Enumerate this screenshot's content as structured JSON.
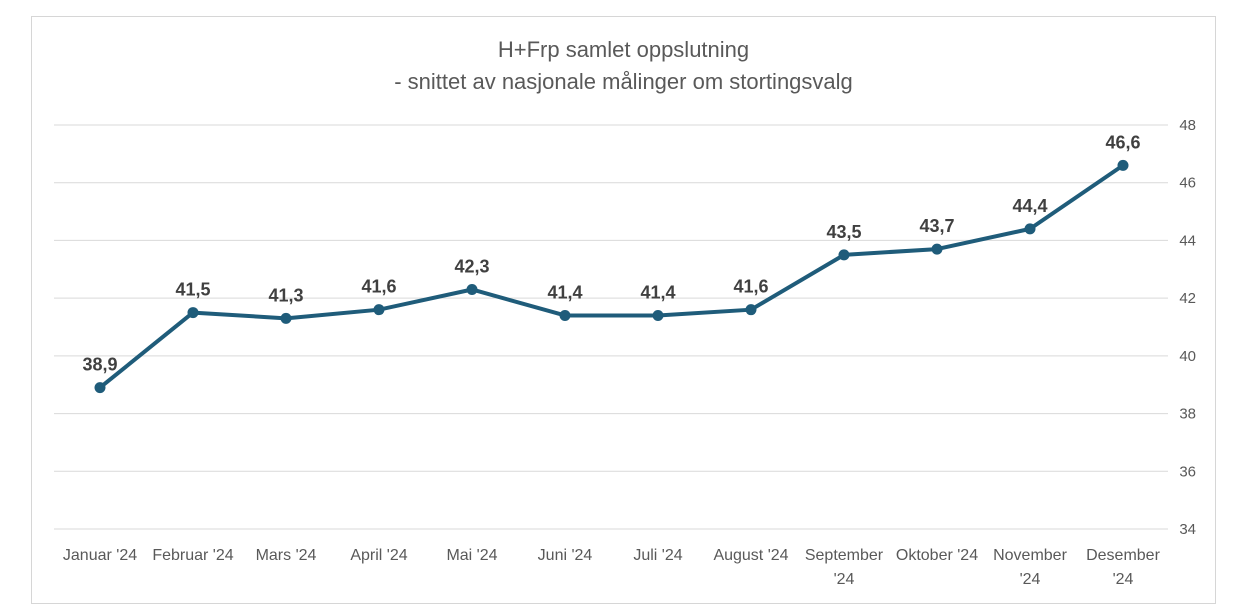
{
  "colors": {
    "series": "#1f5c7a",
    "grid": "#d9d9d9",
    "text": "#595959",
    "label": "#404040"
  },
  "chart_data": {
    "type": "line",
    "title_lines": [
      "H+Frp samlet oppslutning",
      "- snittet av nasjonale målinger om stortingsvalg"
    ],
    "categories": [
      "Januar '24",
      "Februar '24",
      "Mars '24",
      "April '24",
      "Mai '24",
      "Juni '24",
      "Juli '24",
      "August '24",
      "September '24",
      "Oktober '24",
      "November '24",
      "Desember '24"
    ],
    "category_lines": [
      [
        "Januar '24"
      ],
      [
        "Februar '24"
      ],
      [
        "Mars '24"
      ],
      [
        "April '24"
      ],
      [
        "Mai '24"
      ],
      [
        "Juni '24"
      ],
      [
        "Juli '24"
      ],
      [
        "August '24"
      ],
      [
        "September",
        "'24"
      ],
      [
        "Oktober '24"
      ],
      [
        "November",
        "'24"
      ],
      [
        "Desember",
        "'24"
      ]
    ],
    "series": [
      {
        "name": "H+Frp",
        "values": [
          38.9,
          41.5,
          41.3,
          41.6,
          42.3,
          41.4,
          41.4,
          41.6,
          43.5,
          43.7,
          44.4,
          46.6
        ],
        "labels": [
          "38,9",
          "41,5",
          "41,3",
          "41,6",
          "42,3",
          "41,4",
          "41,4",
          "41,6",
          "43,5",
          "43,7",
          "44,4",
          "46,6"
        ]
      }
    ],
    "ylim": [
      34,
      48
    ],
    "yticks": [
      34,
      36,
      38,
      40,
      42,
      44,
      46,
      48
    ],
    "ytick_labels": [
      "34",
      "36",
      "38",
      "40",
      "42",
      "44",
      "46",
      "48"
    ],
    "y_axis_side": "right",
    "grid": true,
    "xlabel": "",
    "ylabel": ""
  }
}
